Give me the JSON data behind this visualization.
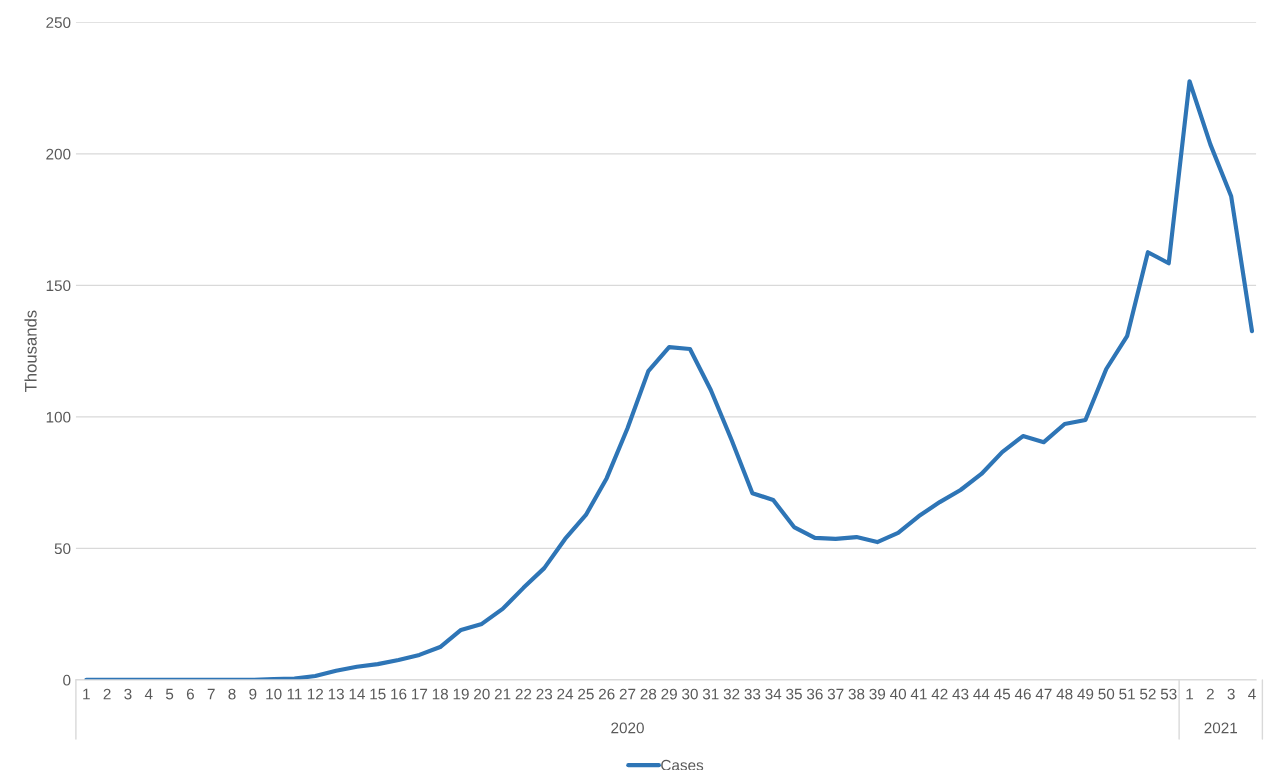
{
  "chart_data": {
    "type": "line",
    "ylabel": "Thousands",
    "categories": [
      "1",
      "2",
      "3",
      "4",
      "5",
      "6",
      "7",
      "8",
      "9",
      "10",
      "11",
      "12",
      "13",
      "14",
      "15",
      "16",
      "17",
      "18",
      "19",
      "20",
      "21",
      "22",
      "23",
      "24",
      "25",
      "26",
      "27",
      "28",
      "29",
      "30",
      "31",
      "32",
      "33",
      "34",
      "35",
      "36",
      "37",
      "38",
      "39",
      "40",
      "41",
      "42",
      "43",
      "44",
      "45",
      "46",
      "47",
      "48",
      "49",
      "50",
      "51",
      "52",
      "53",
      "1",
      "2",
      "3",
      "4"
    ],
    "series": [
      {
        "name": "Cases",
        "color": "#2e75b6",
        "values": [
          0,
          0,
          0,
          0,
          0,
          0,
          0,
          0,
          0,
          0.3,
          0.5,
          1.5,
          3.5,
          5,
          6,
          7.6,
          9.5,
          12.5,
          19,
          21.3,
          27,
          35,
          42.5,
          53.6,
          62.7,
          76.7,
          95.7,
          117.4,
          126.5,
          125.8,
          110.2,
          91.2,
          71,
          68.4,
          58.1,
          54,
          53.6,
          54.3,
          52.4,
          55.9,
          62.3,
          67.6,
          72.2,
          78.3,
          86.6,
          92.7,
          90.4,
          97.3,
          98.8,
          118.2,
          130.7,
          162.6,
          158.4,
          227.6,
          203.6,
          183.9,
          132.6
        ]
      }
    ],
    "annotations": [
      "2020",
      "2021"
    ],
    "ylim": [
      0,
      250
    ],
    "yticks": [
      0,
      50,
      100,
      150,
      200,
      250
    ],
    "grid": "y",
    "legend": "bottom",
    "marker": "none",
    "line_style": "solid"
  }
}
